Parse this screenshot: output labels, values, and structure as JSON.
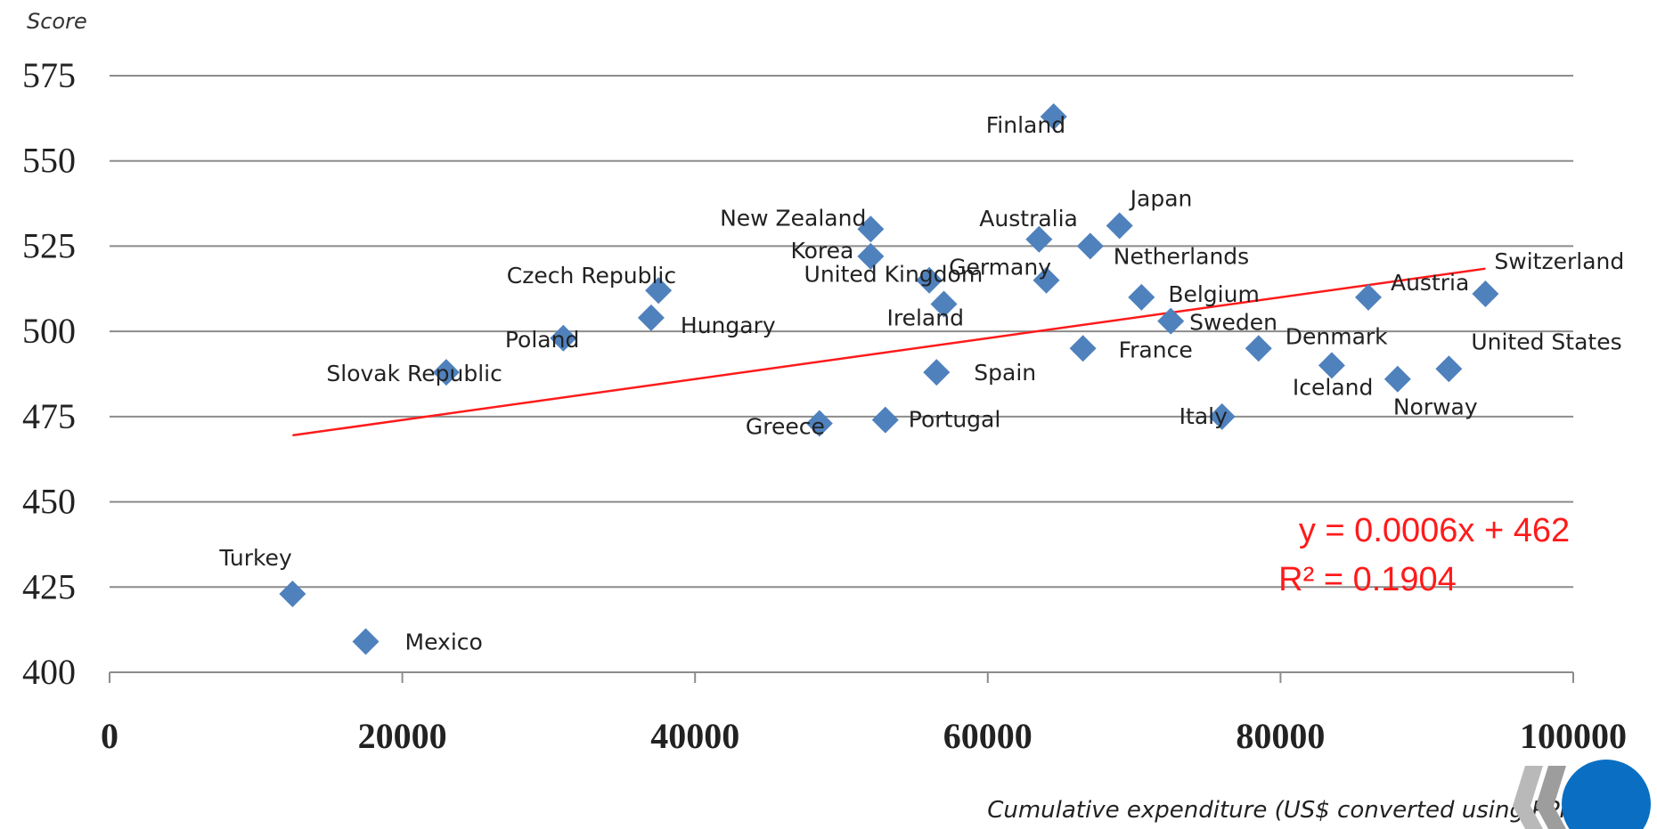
{
  "chart_data": {
    "type": "scatter",
    "ylabel": "Score",
    "xlabel": "Cumulative expenditure (US$ converted using PPPs)",
    "xlim": [
      0,
      100000
    ],
    "ylim": [
      400,
      575
    ],
    "x_ticks": [
      "0",
      "20000",
      "40000",
      "60000",
      "80000",
      "100000"
    ],
    "y_ticks": [
      "400",
      "425",
      "450",
      "475",
      "500",
      "525",
      "550",
      "575"
    ],
    "grid": "horizontal",
    "marker_color": "#4f81bd",
    "trendline_color": "#ff1a1a",
    "points": [
      {
        "label": "Finland",
        "x": 64500,
        "y": 563
      },
      {
        "label": "Japan",
        "x": 69000,
        "y": 531
      },
      {
        "label": "New Zealand",
        "x": 52000,
        "y": 530
      },
      {
        "label": "Australia",
        "x": 63500,
        "y": 527
      },
      {
        "label": "Netherlands",
        "x": 67000,
        "y": 525
      },
      {
        "label": "Korea",
        "x": 52000,
        "y": 522
      },
      {
        "label": "Germany",
        "x": 56000,
        "y": 515
      },
      {
        "label": "United Kingdom",
        "x": 64000,
        "y": 515
      },
      {
        "label": "Czech Republic",
        "x": 37500,
        "y": 512
      },
      {
        "label": "Switzerland",
        "x": 94000,
        "y": 511
      },
      {
        "label": "Belgium",
        "x": 70500,
        "y": 510
      },
      {
        "label": "Austria",
        "x": 86000,
        "y": 510
      },
      {
        "label": "Ireland",
        "x": 57000,
        "y": 508
      },
      {
        "label": "Hungary",
        "x": 37000,
        "y": 504
      },
      {
        "label": "Sweden",
        "x": 72500,
        "y": 503
      },
      {
        "label": "Poland",
        "x": 31000,
        "y": 498
      },
      {
        "label": "Denmark",
        "x": 78500,
        "y": 495
      },
      {
        "label": "France",
        "x": 66500,
        "y": 495
      },
      {
        "label": "Iceland",
        "x": 83500,
        "y": 490
      },
      {
        "label": "United States",
        "x": 91500,
        "y": 489
      },
      {
        "label": "Slovak Republic",
        "x": 23000,
        "y": 488
      },
      {
        "label": "Spain",
        "x": 56500,
        "y": 488
      },
      {
        "label": "Norway",
        "x": 88000,
        "y": 486
      },
      {
        "label": "Italy",
        "x": 76000,
        "y": 475
      },
      {
        "label": "Portugal",
        "x": 53000,
        "y": 474
      },
      {
        "label": "Greece",
        "x": 48500,
        "y": 473
      },
      {
        "label": "Turkey",
        "x": 12500,
        "y": 423
      },
      {
        "label": "Mexico",
        "x": 17500,
        "y": 409
      }
    ],
    "trendline": {
      "equation": "y = 0.0006x + 462",
      "r_squared": "R² = 0.1904",
      "x_start": 12500,
      "x_end": 94000
    }
  }
}
